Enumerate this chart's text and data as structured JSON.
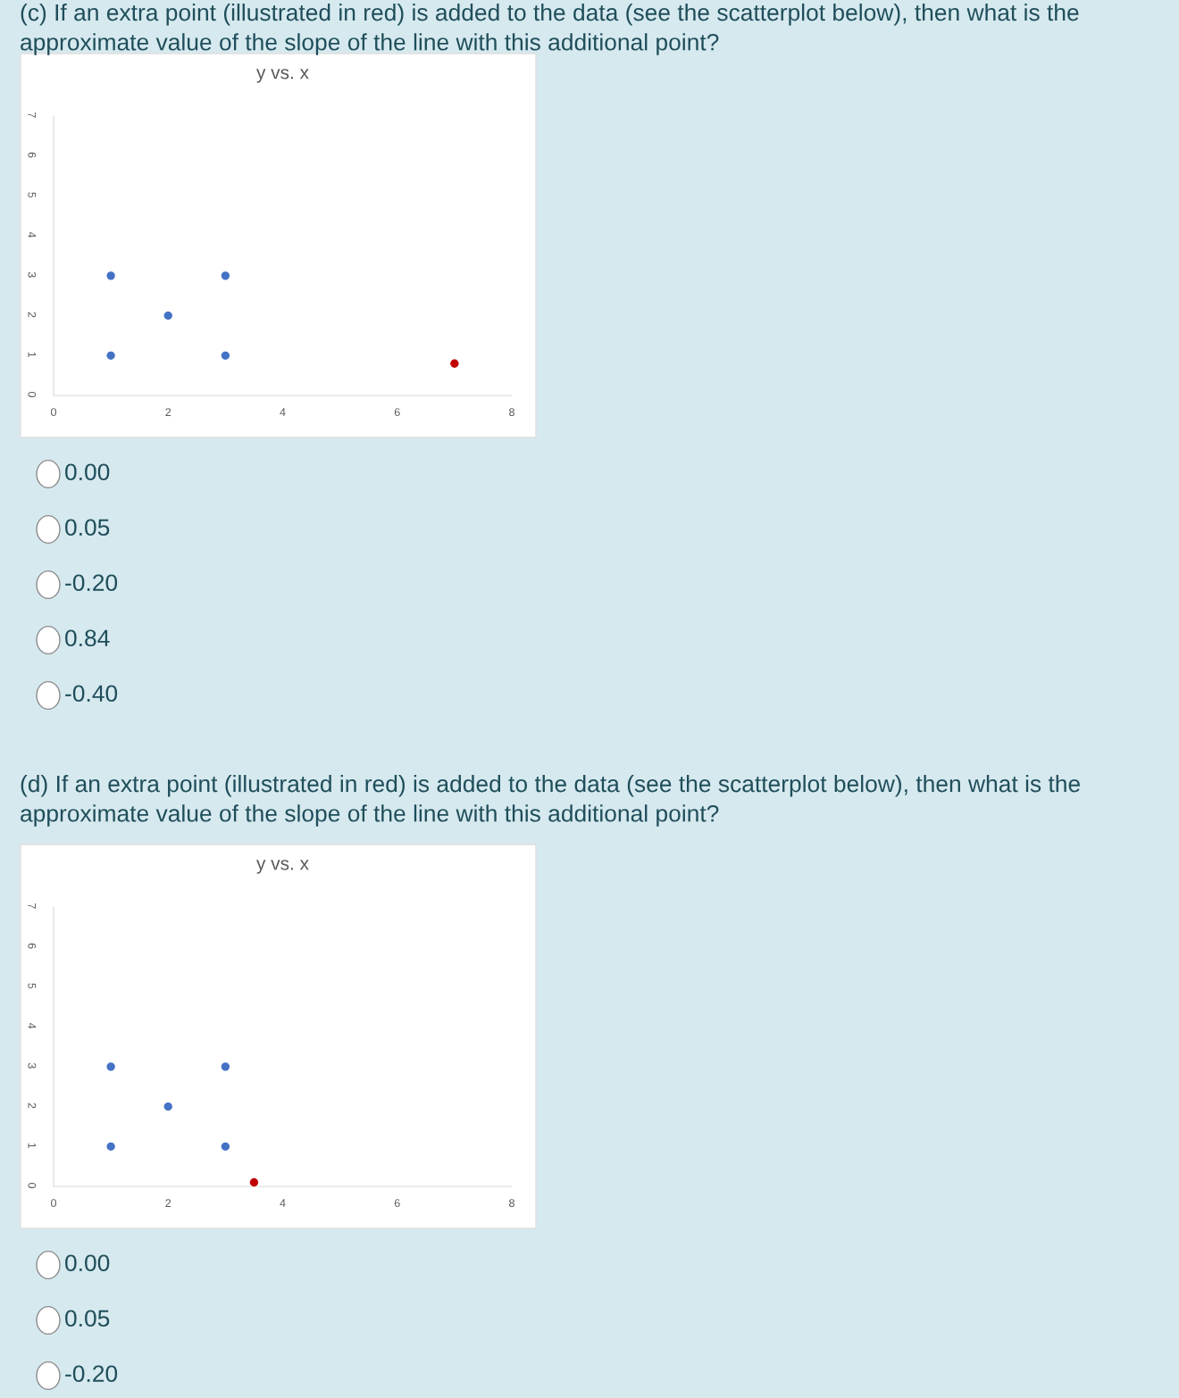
{
  "chart_data": [
    {
      "type": "scatter",
      "title": "y vs. x",
      "xlim": [
        0,
        8
      ],
      "ylim": [
        0,
        7
      ],
      "xticks": [
        0,
        2,
        4,
        6,
        8
      ],
      "yticks": [
        0,
        1,
        2,
        3,
        4,
        5,
        6,
        7
      ],
      "marker": "circle",
      "grid": false,
      "series": [
        {
          "color": "#4472c4",
          "x": [
            1,
            1,
            2,
            3,
            3
          ],
          "values": [
            3,
            1,
            2,
            3,
            1
          ]
        },
        {
          "color": "#c00000",
          "x": [
            7
          ],
          "values": [
            0.8
          ]
        }
      ],
      "annotations": [
        "(c) If an extra point (illustrated in red) is added to the data (see the scatterplot below), then what is the approximate value of the slope of the line with this additional point?",
        "0.00",
        "0.05",
        "-0.20",
        "0.84",
        "-0.40"
      ]
    },
    {
      "type": "scatter",
      "title": "y vs. x",
      "xlim": [
        0,
        8
      ],
      "ylim": [
        0,
        7
      ],
      "xticks": [
        0,
        2,
        4,
        6,
        8
      ],
      "yticks": [
        0,
        1,
        2,
        3,
        4,
        5,
        6,
        7
      ],
      "marker": "circle",
      "grid": false,
      "series": [
        {
          "color": "#4472c4",
          "x": [
            1,
            1,
            2,
            3,
            3
          ],
          "values": [
            3,
            1,
            2,
            3,
            1
          ]
        },
        {
          "color": "#c00000",
          "x": [
            3.5
          ],
          "values": [
            0.1
          ]
        }
      ],
      "annotations": [
        "(d) If an extra point (illustrated in red) is added to the data (see the scatterplot below), then what is the approximate value of the slope of the line with this additional point?",
        "0.00",
        "0.05",
        "-0.20"
      ]
    }
  ]
}
